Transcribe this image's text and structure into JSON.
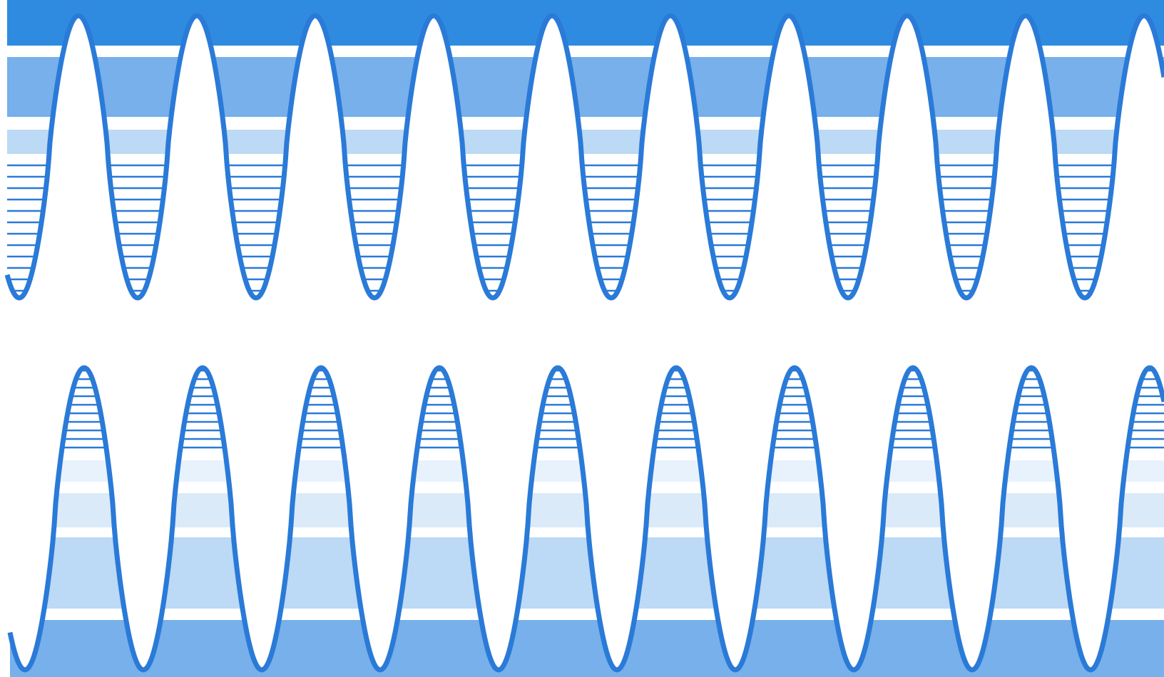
{
  "artwork": {
    "description_visible_text": "",
    "colors": {
      "paper": "#ffffff",
      "stroke": "#2a7ad8",
      "top_band": "#2f8bdf",
      "band_mid": "#77b0ea",
      "band_light": "#bcd9f5",
      "band_pale": "#dbeaf9",
      "band_faint": "#e8f2fc"
    },
    "top_wave": {
      "cycles": 9.5,
      "hatched_troughs": true
    },
    "bottom_wave": {
      "cycles": 9.5,
      "hatched_crests": true
    }
  }
}
